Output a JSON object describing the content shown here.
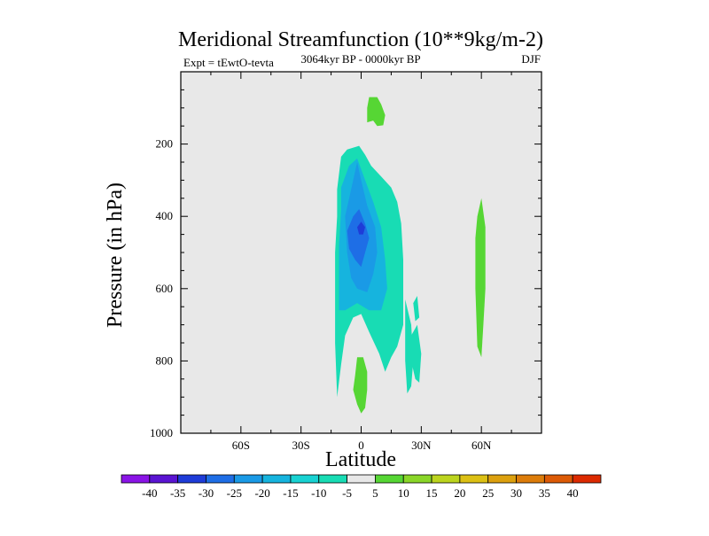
{
  "chart_data": {
    "type": "contour",
    "title": "Meridional Streamfunction (10**9kg/m-2)",
    "left_string": "Expt = tEwtO-tevta",
    "center_string": "3064kyr BP - 0000kyr BP",
    "right_string": "DJF",
    "xlabel": "Latitude",
    "ylabel": "Pressure (in hPa)",
    "xlim": [
      -90,
      90
    ],
    "ylim": [
      1000,
      0
    ],
    "x_ticks": [
      {
        "value": -60,
        "label": "60S"
      },
      {
        "value": -30,
        "label": "30S"
      },
      {
        "value": 0,
        "label": "0"
      },
      {
        "value": 30,
        "label": "30N"
      },
      {
        "value": 60,
        "label": "60N"
      }
    ],
    "y_ticks": [
      {
        "value": 200,
        "label": "200"
      },
      {
        "value": 400,
        "label": "400"
      },
      {
        "value": 600,
        "label": "600"
      },
      {
        "value": 800,
        "label": "800"
      },
      {
        "value": 1000,
        "label": "1000"
      }
    ],
    "background_color": "#e8e8e8",
    "colorbar": {
      "levels": [
        "-40",
        "-35",
        "-30",
        "-25",
        "-20",
        "-15",
        "-10",
        "-5",
        "5",
        "10",
        "15",
        "20",
        "25",
        "30",
        "35",
        "40"
      ],
      "colors": [
        "#8a14e6",
        "#5a14d2",
        "#1e3cd8",
        "#1e6ee6",
        "#1a9ae6",
        "#16b4de",
        "#18d2d2",
        "#18dcb4",
        "#e8e8e8",
        "#56d634",
        "#8ad628",
        "#bcd41e",
        "#dcc014",
        "#dca00e",
        "#dc7c0a",
        "#dc5a06",
        "#dc2a00"
      ]
    },
    "regions": [
      {
        "name": "positive-cell-upper",
        "color": "#56d634",
        "points": [
          [
            4,
            70
          ],
          [
            8,
            70
          ],
          [
            10,
            90
          ],
          [
            12,
            120
          ],
          [
            11,
            148
          ],
          [
            8,
            150
          ],
          [
            6,
            135
          ],
          [
            3,
            140
          ],
          [
            3,
            100
          ]
        ]
      },
      {
        "name": "negative-outer",
        "color": "#18dcb4",
        "points": [
          [
            -12,
            325
          ],
          [
            -10,
            235
          ],
          [
            -7,
            215
          ],
          [
            -1,
            205
          ],
          [
            2,
            230
          ],
          [
            5,
            260
          ],
          [
            10,
            290
          ],
          [
            15,
            320
          ],
          [
            18,
            360
          ],
          [
            20,
            420
          ],
          [
            21,
            520
          ],
          [
            21,
            600
          ],
          [
            21,
            700
          ],
          [
            18,
            760
          ],
          [
            15,
            790
          ],
          [
            12,
            830
          ],
          [
            9,
            780
          ],
          [
            4,
            720
          ],
          [
            0,
            670
          ],
          [
            -4,
            680
          ],
          [
            -8,
            730
          ],
          [
            -10,
            810
          ],
          [
            -12,
            900
          ],
          [
            -13,
            750
          ],
          [
            -13,
            650
          ],
          [
            -13,
            500
          ],
          [
            -12,
            400
          ]
        ]
      },
      {
        "name": "negative-mid",
        "color": "#16b4de",
        "points": [
          [
            -10,
            320
          ],
          [
            -6,
            260
          ],
          [
            -2,
            240
          ],
          [
            2,
            300
          ],
          [
            6,
            360
          ],
          [
            10,
            430
          ],
          [
            12,
            520
          ],
          [
            13,
            600
          ],
          [
            10,
            660
          ],
          [
            4,
            660
          ],
          [
            -2,
            640
          ],
          [
            -8,
            660
          ],
          [
            -11,
            660
          ],
          [
            -11,
            580
          ],
          [
            -11,
            480
          ],
          [
            -10,
            380
          ]
        ]
      },
      {
        "name": "negative-inner",
        "color": "#1a9ae6",
        "points": [
          [
            -8,
            400
          ],
          [
            -4,
            300
          ],
          [
            -2,
            250
          ],
          [
            0,
            300
          ],
          [
            3,
            370
          ],
          [
            7,
            430
          ],
          [
            8,
            500
          ],
          [
            6,
            560
          ],
          [
            3,
            610
          ],
          [
            -2,
            600
          ],
          [
            -5,
            570
          ],
          [
            -7,
            500
          ]
        ]
      },
      {
        "name": "negative-core",
        "color": "#1e6ee6",
        "points": [
          [
            -7,
            440
          ],
          [
            -4,
            400
          ],
          [
            -1,
            380
          ],
          [
            2,
            420
          ],
          [
            4,
            460
          ],
          [
            2,
            500
          ],
          [
            0,
            540
          ],
          [
            -3,
            520
          ],
          [
            -6,
            490
          ]
        ]
      },
      {
        "name": "negative-eye",
        "color": "#1e3cd8",
        "points": [
          [
            -2,
            430
          ],
          [
            0,
            415
          ],
          [
            2,
            430
          ],
          [
            1,
            450
          ],
          [
            -1,
            450
          ]
        ]
      },
      {
        "name": "negative-narrow-a",
        "color": "#18dcb4",
        "points": [
          [
            22,
            630
          ],
          [
            25,
            700
          ],
          [
            26,
            800
          ],
          [
            25,
            870
          ],
          [
            23,
            890
          ],
          [
            22,
            800
          ],
          [
            22,
            700
          ]
        ]
      },
      {
        "name": "negative-narrow-b",
        "color": "#18dcb4",
        "points": [
          [
            25,
            730
          ],
          [
            28,
            700
          ],
          [
            30,
            780
          ],
          [
            29,
            860
          ],
          [
            27,
            850
          ],
          [
            25,
            800
          ]
        ]
      },
      {
        "name": "negative-narrow-c",
        "color": "#18dcb4",
        "points": [
          [
            26,
            640
          ],
          [
            28,
            620
          ],
          [
            29,
            680
          ],
          [
            27,
            690
          ]
        ]
      },
      {
        "name": "positive-cell-surface",
        "color": "#56d634",
        "points": [
          [
            -2,
            790
          ],
          [
            1,
            790
          ],
          [
            3,
            830
          ],
          [
            3,
            880
          ],
          [
            2,
            930
          ],
          [
            0,
            945
          ],
          [
            -2,
            920
          ],
          [
            -4,
            880
          ],
          [
            -3,
            840
          ]
        ]
      },
      {
        "name": "positive-cell-60n",
        "color": "#56d634",
        "points": [
          [
            60,
            350
          ],
          [
            62,
            430
          ],
          [
            62,
            520
          ],
          [
            62,
            600
          ],
          [
            61,
            700
          ],
          [
            60,
            790
          ],
          [
            58,
            760
          ],
          [
            57,
            600
          ],
          [
            57,
            460
          ],
          [
            58,
            400
          ]
        ]
      }
    ]
  }
}
